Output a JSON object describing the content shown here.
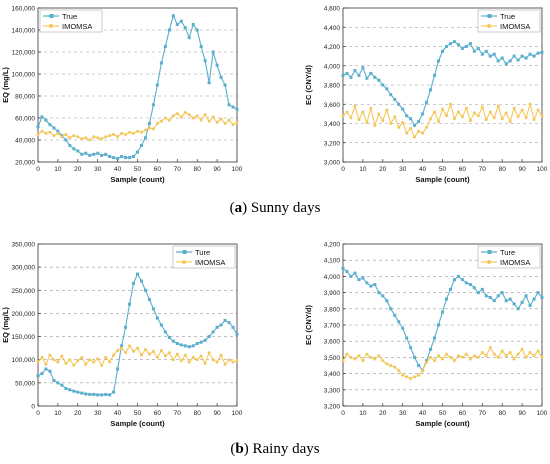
{
  "captions": {
    "a_letter": "a",
    "a_text": " Sunny days",
    "b_letter": "b",
    "b_text": " Rainy days"
  },
  "colors": {
    "true_series": "#5aaecc",
    "imomsa_series": "#f5c75a"
  },
  "chart_data": [
    {
      "id": "sunny-eq",
      "type": "line",
      "xlabel": "Sample (count)",
      "ylabel": "EQ (mg/L)",
      "xlim": [
        0,
        100
      ],
      "ylim": [
        20000,
        160000
      ],
      "xticks": [
        0,
        10,
        20,
        30,
        40,
        50,
        60,
        70,
        80,
        90,
        100
      ],
      "yticks": [
        20000,
        40000,
        60000,
        80000,
        100000,
        120000,
        140000,
        160000
      ],
      "ytick_labels": [
        "20,000",
        "40,000",
        "60,000",
        "80,000",
        "100,000",
        "120,000",
        "140,000",
        "160,000"
      ],
      "legend": "top-left",
      "grid": true,
      "series": [
        {
          "name": "True",
          "color": "#5aaecc",
          "marker": "square",
          "x": [
            0,
            2,
            4,
            6,
            8,
            10,
            12,
            14,
            16,
            18,
            20,
            22,
            24,
            26,
            28,
            30,
            32,
            34,
            36,
            38,
            40,
            42,
            44,
            46,
            48,
            50,
            52,
            54,
            56,
            58,
            60,
            62,
            64,
            66,
            68,
            70,
            72,
            74,
            76,
            78,
            80,
            82,
            84,
            86,
            88,
            90,
            92,
            94,
            96,
            98,
            100
          ],
          "y": [
            52000,
            61000,
            58000,
            54000,
            51000,
            48000,
            44000,
            40000,
            35000,
            32000,
            30000,
            27000,
            28000,
            26000,
            27000,
            28000,
            26000,
            27000,
            25000,
            24000,
            23000,
            25000,
            24000,
            24000,
            25000,
            29000,
            35000,
            42000,
            55000,
            72000,
            90000,
            110000,
            125000,
            140000,
            153000,
            145000,
            148000,
            142000,
            133000,
            145000,
            140000,
            125000,
            112000,
            92000,
            120000,
            108000,
            97000,
            90000,
            72000,
            70000,
            68000
          ]
        },
        {
          "name": "IMOMSA",
          "color": "#f5c75a",
          "marker": "circle",
          "x": [
            0,
            2,
            4,
            6,
            8,
            10,
            12,
            14,
            16,
            18,
            20,
            22,
            24,
            26,
            28,
            30,
            32,
            34,
            36,
            38,
            40,
            42,
            44,
            46,
            48,
            50,
            52,
            54,
            56,
            58,
            60,
            62,
            64,
            66,
            68,
            70,
            72,
            74,
            76,
            78,
            80,
            82,
            84,
            86,
            88,
            90,
            92,
            94,
            96,
            98,
            100
          ],
          "y": [
            45000,
            48000,
            46000,
            47000,
            44000,
            46000,
            43000,
            45000,
            42000,
            44000,
            43000,
            41000,
            42000,
            40000,
            43000,
            42000,
            41000,
            43000,
            44000,
            45000,
            43000,
            46000,
            45000,
            47000,
            46000,
            48000,
            47000,
            49000,
            51000,
            50000,
            55000,
            57000,
            60000,
            58000,
            62000,
            64000,
            61000,
            65000,
            63000,
            60000,
            62000,
            58000,
            63000,
            57000,
            61000,
            56000,
            59000,
            55000,
            58000,
            54000,
            56000
          ]
        }
      ]
    },
    {
      "id": "sunny-ec",
      "type": "line",
      "xlabel": "Sample (count)",
      "ylabel": "EC (CNY/d)",
      "xlim": [
        0,
        100
      ],
      "ylim": [
        3000,
        4600
      ],
      "xticks": [
        0,
        10,
        20,
        30,
        40,
        50,
        60,
        70,
        80,
        90,
        100
      ],
      "yticks": [
        3000,
        3200,
        3400,
        3600,
        3800,
        4000,
        4200,
        4400,
        4600
      ],
      "ytick_labels": [
        "3,000",
        "3,200",
        "3,400",
        "3,600",
        "3,800",
        "4,000",
        "4,200",
        "4,400",
        "4,600"
      ],
      "legend": "top-right",
      "grid": true,
      "series": [
        {
          "name": "True",
          "color": "#5aaecc",
          "marker": "square",
          "x": [
            0,
            2,
            4,
            6,
            8,
            10,
            12,
            14,
            16,
            18,
            20,
            22,
            24,
            26,
            28,
            30,
            32,
            34,
            36,
            38,
            40,
            42,
            44,
            46,
            48,
            50,
            52,
            54,
            56,
            58,
            60,
            62,
            64,
            66,
            68,
            70,
            72,
            74,
            76,
            78,
            80,
            82,
            84,
            86,
            88,
            90,
            92,
            94,
            96,
            98,
            100
          ],
          "y": [
            3900,
            3920,
            3880,
            3950,
            3900,
            3980,
            3870,
            3920,
            3880,
            3850,
            3800,
            3760,
            3700,
            3650,
            3600,
            3550,
            3480,
            3450,
            3380,
            3420,
            3500,
            3620,
            3750,
            3900,
            4050,
            4150,
            4200,
            4230,
            4250,
            4220,
            4180,
            4200,
            4230,
            4150,
            4180,
            4120,
            4150,
            4100,
            4120,
            4050,
            4080,
            4020,
            4050,
            4100,
            4060,
            4100,
            4080,
            4120,
            4100,
            4130,
            4140
          ]
        },
        {
          "name": "IMOMSA",
          "color": "#f5c75a",
          "marker": "circle",
          "x": [
            0,
            2,
            4,
            6,
            8,
            10,
            12,
            14,
            16,
            18,
            20,
            22,
            24,
            26,
            28,
            30,
            32,
            34,
            36,
            38,
            40,
            42,
            44,
            46,
            48,
            50,
            52,
            54,
            56,
            58,
            60,
            62,
            64,
            66,
            68,
            70,
            72,
            74,
            76,
            78,
            80,
            82,
            84,
            86,
            88,
            90,
            92,
            94,
            96,
            98,
            100
          ],
          "y": [
            3480,
            3520,
            3460,
            3580,
            3440,
            3520,
            3410,
            3560,
            3380,
            3500,
            3430,
            3540,
            3400,
            3470,
            3360,
            3410,
            3300,
            3350,
            3260,
            3320,
            3300,
            3360,
            3450,
            3520,
            3420,
            3550,
            3480,
            3600,
            3450,
            3520,
            3470,
            3560,
            3430,
            3510,
            3480,
            3570,
            3440,
            3520,
            3460,
            3580,
            3450,
            3510,
            3420,
            3560,
            3470,
            3540,
            3460,
            3600,
            3440,
            3540,
            3480
          ]
        }
      ]
    },
    {
      "id": "rainy-eq",
      "type": "line",
      "xlabel": "Sample (count)",
      "ylabel": "EQ (mg/L)",
      "xlim": [
        0,
        100
      ],
      "ylim": [
        0,
        350000
      ],
      "xticks": [
        0,
        10,
        20,
        30,
        40,
        50,
        60,
        70,
        80,
        90,
        100
      ],
      "yticks": [
        0,
        50000,
        100000,
        150000,
        200000,
        250000,
        300000,
        350000
      ],
      "ytick_labels": [
        "0",
        "50,000",
        "100,000",
        "150,000",
        "200,000",
        "250,000",
        "300,000",
        "350,000"
      ],
      "legend": "top-right",
      "grid": true,
      "series": [
        {
          "name": "Ture",
          "color": "#5aaecc",
          "marker": "square",
          "x": [
            0,
            2,
            4,
            6,
            8,
            10,
            12,
            14,
            16,
            18,
            20,
            22,
            24,
            26,
            28,
            30,
            32,
            34,
            36,
            38,
            40,
            42,
            44,
            46,
            48,
            50,
            52,
            54,
            56,
            58,
            60,
            62,
            64,
            66,
            68,
            70,
            72,
            74,
            76,
            78,
            80,
            82,
            84,
            86,
            88,
            90,
            92,
            94,
            96,
            98,
            100
          ],
          "y": [
            65000,
            70000,
            80000,
            75000,
            55000,
            50000,
            45000,
            38000,
            35000,
            32000,
            30000,
            28000,
            26000,
            25000,
            25000,
            24000,
            24000,
            25000,
            24000,
            30000,
            80000,
            130000,
            170000,
            220000,
            265000,
            285000,
            270000,
            250000,
            230000,
            210000,
            190000,
            175000,
            160000,
            148000,
            140000,
            135000,
            132000,
            130000,
            128000,
            130000,
            135000,
            138000,
            142000,
            150000,
            160000,
            170000,
            175000,
            185000,
            180000,
            170000,
            155000
          ]
        },
        {
          "name": "IMOMSA",
          "color": "#f5c75a",
          "marker": "circle",
          "x": [
            0,
            2,
            4,
            6,
            8,
            10,
            12,
            14,
            16,
            18,
            20,
            22,
            24,
            26,
            28,
            30,
            32,
            34,
            36,
            38,
            40,
            42,
            44,
            46,
            48,
            50,
            52,
            54,
            56,
            58,
            60,
            62,
            64,
            66,
            68,
            70,
            72,
            74,
            76,
            78,
            80,
            82,
            84,
            86,
            88,
            90,
            92,
            94,
            96,
            98,
            100
          ],
          "y": [
            95000,
            105000,
            90000,
            110000,
            100000,
            95000,
            108000,
            92000,
            100000,
            88000,
            98000,
            105000,
            90000,
            100000,
            95000,
            102000,
            88000,
            105000,
            95000,
            110000,
            120000,
            125000,
            115000,
            130000,
            118000,
            125000,
            110000,
            122000,
            112000,
            118000,
            105000,
            120000,
            108000,
            115000,
            100000,
            112000,
            98000,
            110000,
            95000,
            105000,
            100000,
            108000,
            92000,
            115000,
            100000,
            95000,
            110000,
            90000,
            100000,
            95000,
            98000
          ]
        }
      ]
    },
    {
      "id": "rainy-ec",
      "type": "line",
      "xlabel": "Sample (count)",
      "ylabel": "EC (CNY/d)",
      "xlim": [
        0,
        100
      ],
      "ylim": [
        3200,
        4200
      ],
      "xticks": [
        0,
        10,
        20,
        30,
        40,
        50,
        60,
        70,
        80,
        90,
        100
      ],
      "yticks": [
        3200,
        3300,
        3400,
        3500,
        3600,
        3700,
        3800,
        3900,
        4000,
        4100,
        4200
      ],
      "ytick_labels": [
        "3,200",
        "3,300",
        "3,400",
        "3,500",
        "3,600",
        "3,700",
        "3,800",
        "3,900",
        "4,000",
        "4,100",
        "4,200"
      ],
      "legend": "top-right",
      "grid": true,
      "series": [
        {
          "name": "Ture",
          "color": "#5aaecc",
          "marker": "square",
          "x": [
            0,
            2,
            4,
            6,
            8,
            10,
            12,
            14,
            16,
            18,
            20,
            22,
            24,
            26,
            28,
            30,
            32,
            34,
            36,
            38,
            40,
            42,
            44,
            46,
            48,
            50,
            52,
            54,
            56,
            58,
            60,
            62,
            64,
            66,
            68,
            70,
            72,
            74,
            76,
            78,
            80,
            82,
            84,
            86,
            88,
            90,
            92,
            94,
            96,
            98,
            100
          ],
          "y": [
            4050,
            4030,
            4000,
            4020,
            3980,
            3990,
            3960,
            3940,
            3950,
            3900,
            3880,
            3850,
            3800,
            3760,
            3720,
            3680,
            3620,
            3560,
            3500,
            3450,
            3420,
            3480,
            3550,
            3620,
            3700,
            3780,
            3860,
            3920,
            3980,
            4000,
            3980,
            3960,
            3950,
            3930,
            3900,
            3920,
            3880,
            3870,
            3850,
            3880,
            3900,
            3850,
            3860,
            3830,
            3800,
            3840,
            3880,
            3820,
            3860,
            3900,
            3870
          ]
        },
        {
          "name": "IMOMSA",
          "color": "#f5c75a",
          "marker": "circle",
          "x": [
            0,
            2,
            4,
            6,
            8,
            10,
            12,
            14,
            16,
            18,
            20,
            22,
            24,
            26,
            28,
            30,
            32,
            34,
            36,
            38,
            40,
            42,
            44,
            46,
            48,
            50,
            52,
            54,
            56,
            58,
            60,
            62,
            64,
            66,
            68,
            70,
            72,
            74,
            76,
            78,
            80,
            82,
            84,
            86,
            88,
            90,
            92,
            94,
            96,
            98,
            100
          ],
          "y": [
            3480,
            3520,
            3500,
            3490,
            3510,
            3480,
            3520,
            3500,
            3490,
            3510,
            3480,
            3460,
            3450,
            3440,
            3420,
            3390,
            3380,
            3370,
            3380,
            3390,
            3420,
            3470,
            3500,
            3480,
            3510,
            3490,
            3520,
            3500,
            3480,
            3510,
            3500,
            3520,
            3490,
            3510,
            3500,
            3530,
            3510,
            3560,
            3520,
            3500,
            3540,
            3510,
            3530,
            3490,
            3520,
            3550,
            3500,
            3530,
            3510,
            3540,
            3500
          ]
        }
      ]
    }
  ]
}
